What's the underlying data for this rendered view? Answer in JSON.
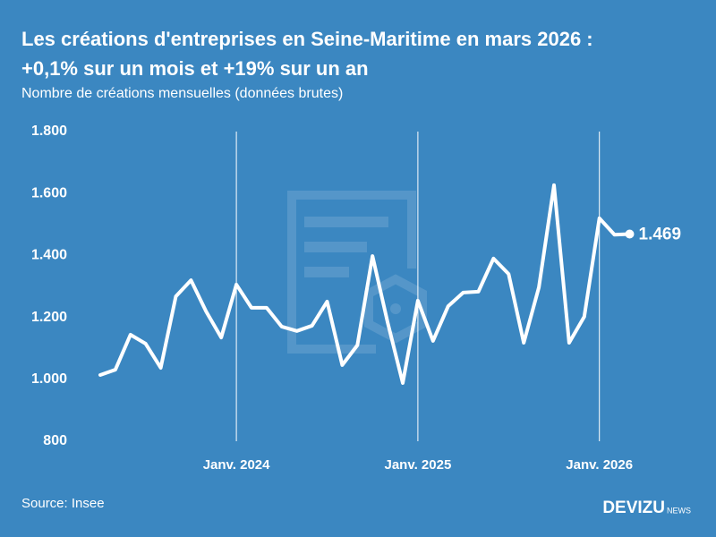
{
  "chart_data": {
    "type": "line",
    "title": "Les créations d'entreprises en Seine-Maritime en mars 2026 :",
    "title_line2": "+0,1% sur un mois et +19% sur un an",
    "subtitle": "Nombre de créations mensuelles (données brutes)",
    "source": "Source: Insee",
    "brand": "DEVIZU",
    "brand_suffix": "NEWS",
    "categories": [
      null,
      null,
      null,
      null,
      null,
      null,
      null,
      null,
      null,
      "Janv. 2024",
      null,
      null,
      null,
      null,
      null,
      null,
      null,
      null,
      null,
      null,
      null,
      "Janv. 2025",
      null,
      null,
      null,
      null,
      null,
      null,
      null,
      null,
      null,
      null,
      null,
      "Janv. 2026",
      null,
      null
    ],
    "series": [
      {
        "name": "Créations",
        "color": "#ffffff",
        "values": [
          1014,
          1031,
          1144,
          1115,
          1037,
          1268,
          1320,
          1219,
          1135,
          1306,
          1231,
          1231,
          1170,
          1156,
          1173,
          1251,
          1046,
          1110,
          1398,
          1184,
          988,
          1254,
          1124,
          1236,
          1280,
          1283,
          1390,
          1340,
          1118,
          1297,
          1627,
          1118,
          1202,
          1520,
          1467,
          1469
        ],
        "value_labels": [
          null,
          null,
          null,
          null,
          null,
          null,
          null,
          null,
          null,
          null,
          null,
          null,
          null,
          null,
          null,
          null,
          null,
          null,
          null,
          null,
          null,
          null,
          null,
          null,
          null,
          null,
          null,
          null,
          null,
          null,
          null,
          null,
          null,
          null,
          null,
          "1.469"
        ]
      }
    ],
    "ylim": [
      800,
      1800
    ],
    "yticks": [
      800,
      {
        "value": 1000,
        "label": "1.000"
      },
      {
        "value": 1200,
        "label": "1.200"
      },
      {
        "value": 1400,
        "label": "1.400"
      },
      {
        "value": 1600,
        "label": "1.600"
      },
      {
        "value": 1800,
        "label": "1.800"
      }
    ],
    "background": "#3b87c1"
  }
}
